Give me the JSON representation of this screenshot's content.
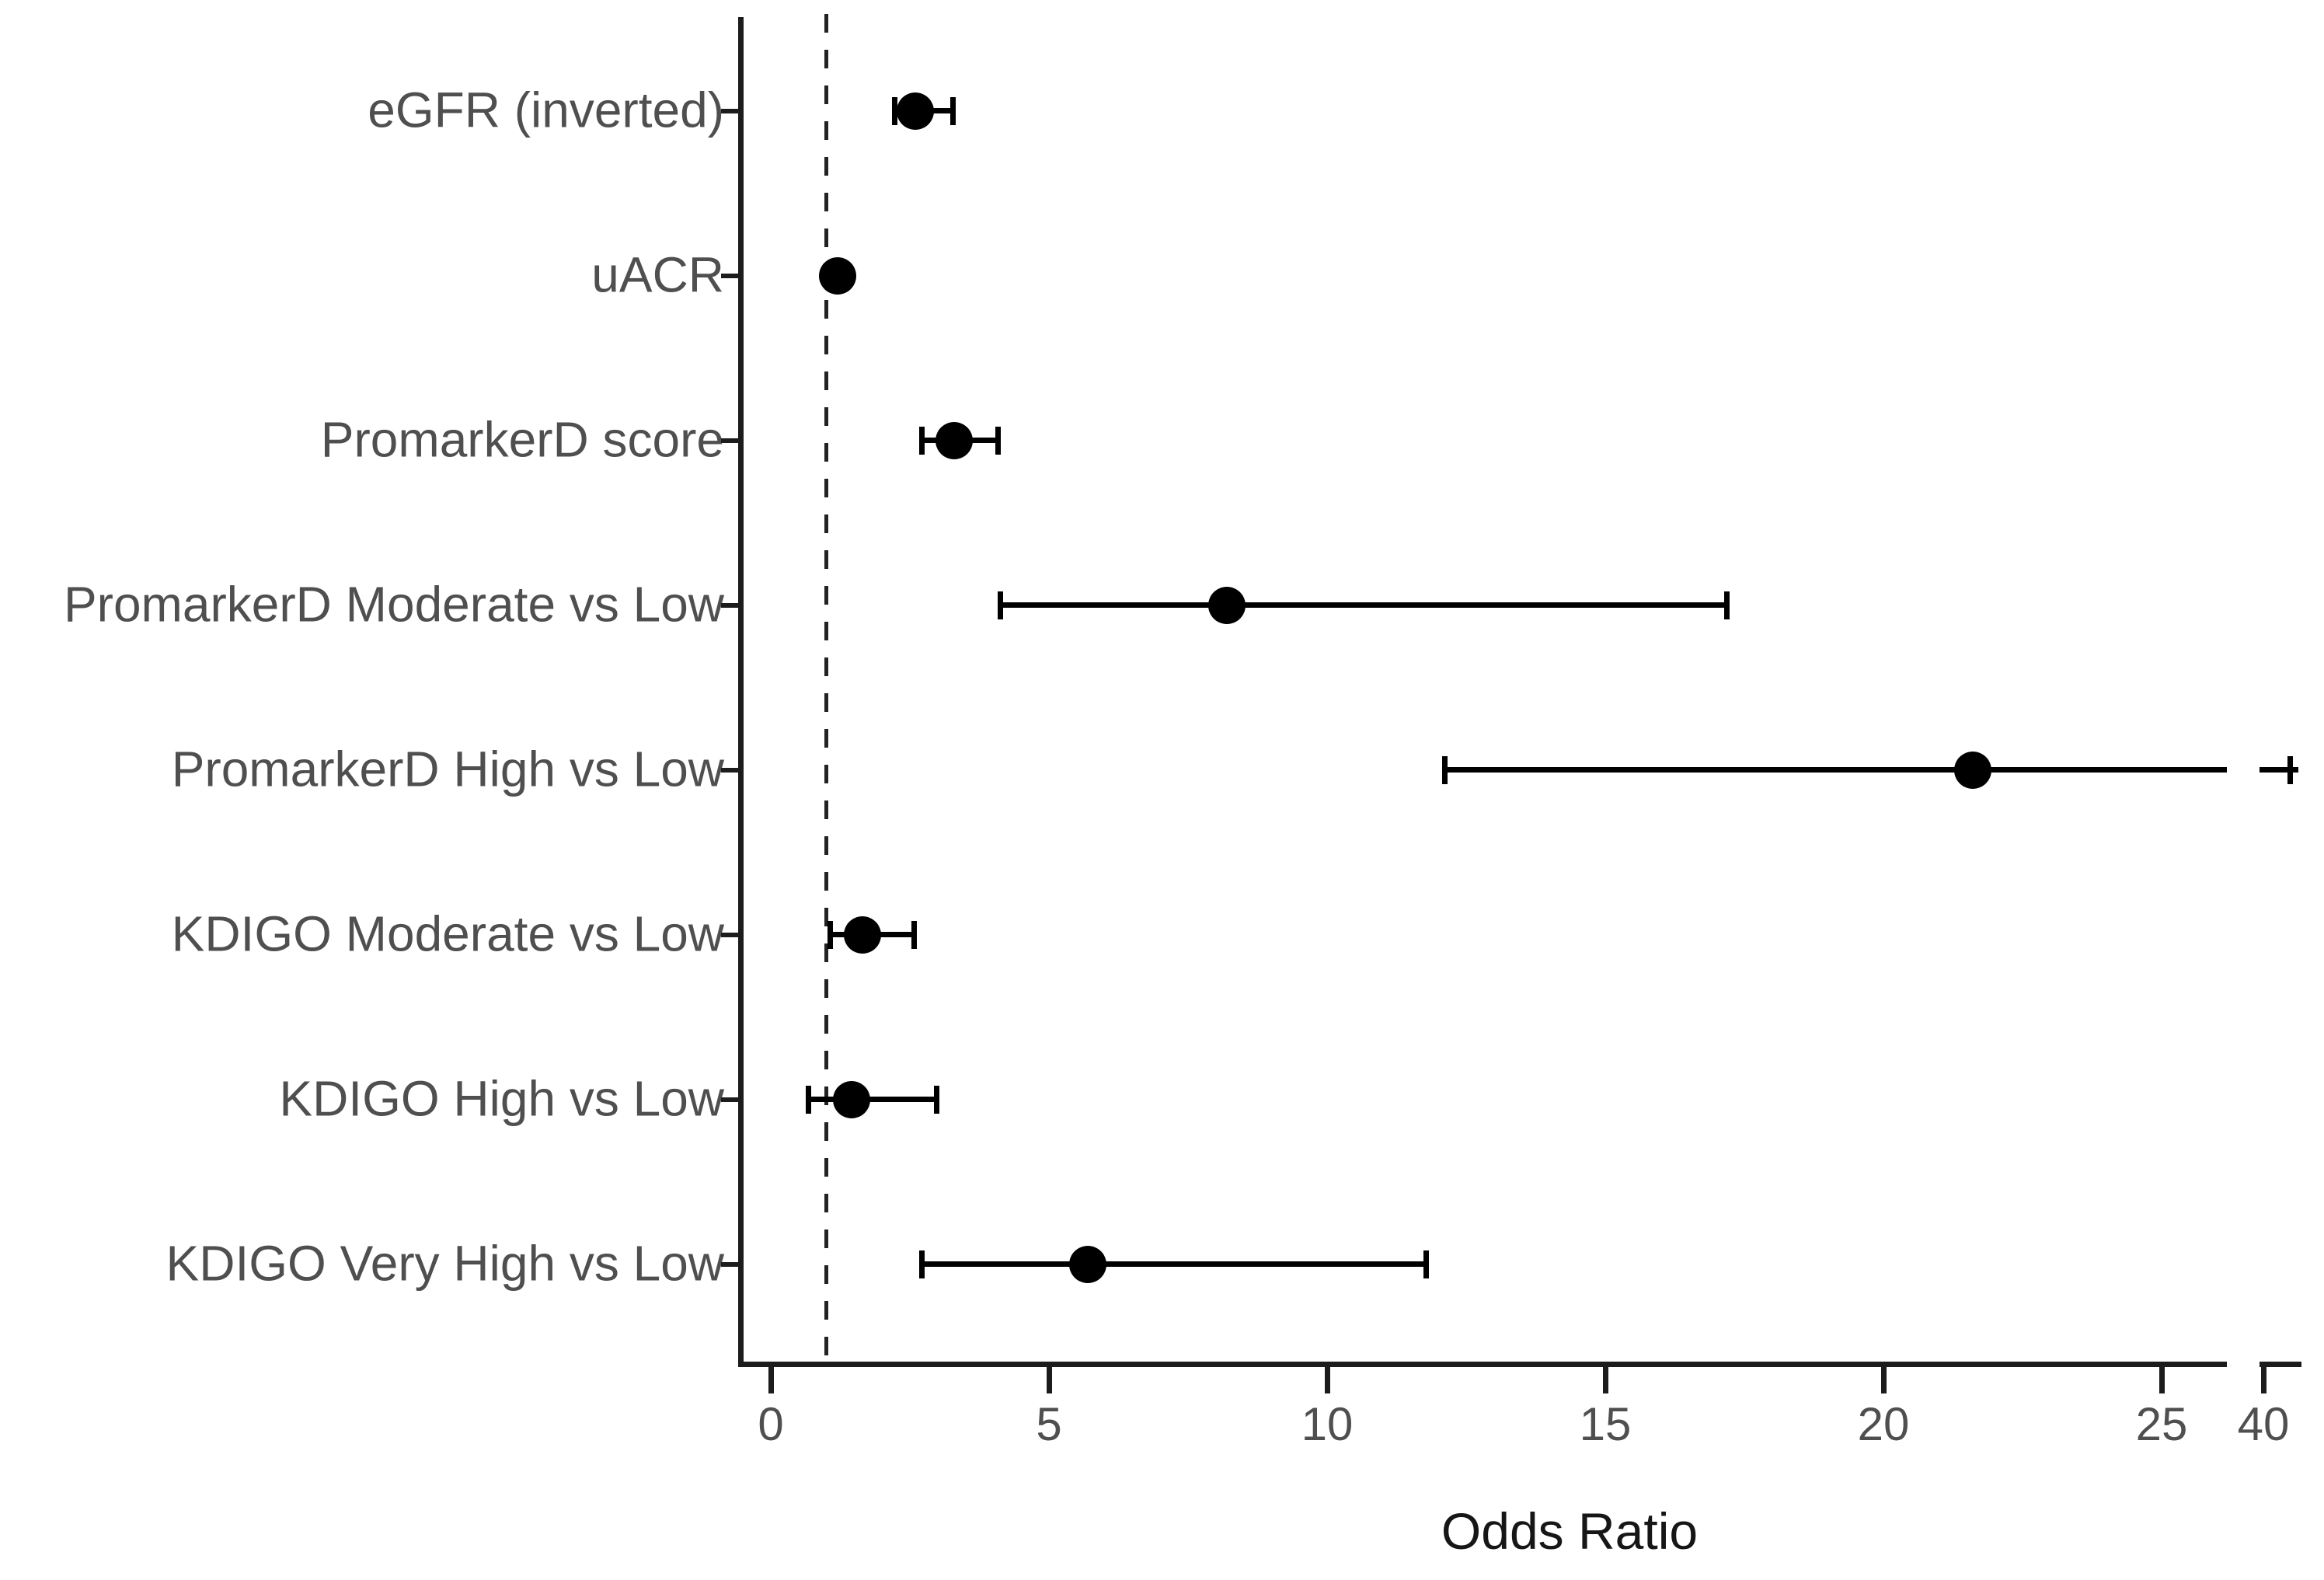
{
  "chart_data": {
    "type": "scatter",
    "subtype": "forest-plot",
    "title": "",
    "xlabel": "Odds Ratio",
    "ylabel": "",
    "x_ticks": [
      0,
      5,
      10,
      15,
      20,
      25,
      40
    ],
    "x_axis_linear_max": 25,
    "x_axis_break_between": [
      25,
      40
    ],
    "xlim": [
      0,
      40
    ],
    "grid": false,
    "legend": false,
    "reference_line_or": 1,
    "reference_line_style": "dashed",
    "rows": [
      {
        "label": "eGFR (inverted)",
        "or": 2.6,
        "ci_low": 2.2,
        "ci_high": 3.3,
        "ci_high_beyond_break": false
      },
      {
        "label": "uACR",
        "or": 1.2,
        "ci_low": 1.05,
        "ci_high": 1.4,
        "ci_high_beyond_break": false
      },
      {
        "label": "PromarkerD score",
        "or": 3.3,
        "ci_low": 2.7,
        "ci_high": 4.1,
        "ci_high_beyond_break": false
      },
      {
        "label": "PromarkerD Moderate vs Low",
        "or": 8.2,
        "ci_low": 4.1,
        "ci_high": 17.2,
        "ci_high_beyond_break": false
      },
      {
        "label": "PromarkerD High vs Low",
        "or": 21.6,
        "ci_low": 12.1,
        "ci_high": 40.5,
        "ci_high_beyond_break": true
      },
      {
        "label": "KDIGO Moderate vs Low",
        "or": 1.65,
        "ci_low": 1.05,
        "ci_high": 2.6,
        "ci_high_beyond_break": false
      },
      {
        "label": "KDIGO High vs Low",
        "or": 1.45,
        "ci_low": 0.65,
        "ci_high": 3.0,
        "ci_high_beyond_break": false
      },
      {
        "label": "KDIGO Very High vs Low",
        "or": 5.7,
        "ci_low": 2.7,
        "ci_high": 11.8,
        "ci_high_beyond_break": false
      }
    ]
  }
}
